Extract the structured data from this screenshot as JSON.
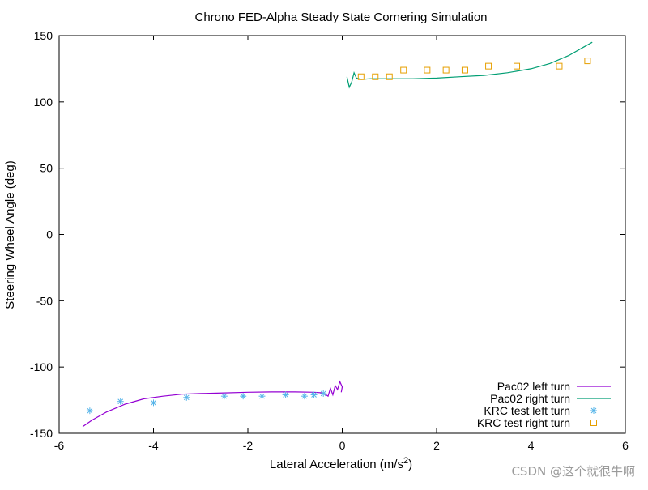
{
  "chart_data": {
    "type": "line",
    "title": "Chrono FED-Alpha Steady State Cornering Simulation",
    "xlabel_main": "Lateral Acceleration (m/s",
    "xlabel_sup": "2",
    "xlabel_tail": ")",
    "ylabel": "Steering Wheel Angle (deg)",
    "xlim": [
      -6,
      6
    ],
    "ylim": [
      -150,
      150
    ],
    "xticks": [
      -6,
      -4,
      -2,
      0,
      2,
      4,
      6
    ],
    "yticks": [
      -150,
      -100,
      -50,
      0,
      50,
      100,
      150
    ],
    "grid": false,
    "legend_position": "bottom-right",
    "series": [
      {
        "name": "Pac02 left turn",
        "kind": "line",
        "color": "#9400d3",
        "points": [
          [
            -5.5,
            -145
          ],
          [
            -5.3,
            -140
          ],
          [
            -5.0,
            -134
          ],
          [
            -4.6,
            -128
          ],
          [
            -4.2,
            -124
          ],
          [
            -3.8,
            -122
          ],
          [
            -3.4,
            -120.5
          ],
          [
            -3.0,
            -120
          ],
          [
            -2.5,
            -119.5
          ],
          [
            -2.0,
            -119
          ],
          [
            -1.5,
            -118.8
          ],
          [
            -1.0,
            -118.8
          ],
          [
            -0.6,
            -119
          ],
          [
            -0.4,
            -119.5
          ],
          [
            -0.3,
            -122
          ],
          [
            -0.25,
            -116
          ],
          [
            -0.2,
            -121
          ],
          [
            -0.15,
            -114
          ],
          [
            -0.1,
            -117
          ],
          [
            -0.05,
            -111
          ],
          [
            0.0,
            -115
          ],
          [
            -0.02,
            -119
          ]
        ]
      },
      {
        "name": "Pac02 right turn",
        "kind": "line",
        "color": "#009e73",
        "points": [
          [
            0.1,
            119
          ],
          [
            0.15,
            111
          ],
          [
            0.2,
            115
          ],
          [
            0.25,
            122
          ],
          [
            0.3,
            118
          ],
          [
            0.4,
            117
          ],
          [
            0.6,
            117.5
          ],
          [
            1.0,
            117.5
          ],
          [
            1.5,
            117.5
          ],
          [
            2.0,
            118
          ],
          [
            2.5,
            119
          ],
          [
            3.0,
            120
          ],
          [
            3.5,
            122
          ],
          [
            4.0,
            125
          ],
          [
            4.4,
            129
          ],
          [
            4.8,
            135
          ],
          [
            5.1,
            141
          ],
          [
            5.3,
            145
          ]
        ]
      },
      {
        "name": "KRC test left turn",
        "kind": "points",
        "marker": "asterisk",
        "color": "#56b4e9",
        "points": [
          [
            -5.35,
            -133
          ],
          [
            -4.7,
            -126
          ],
          [
            -4.0,
            -127
          ],
          [
            -3.3,
            -123
          ],
          [
            -2.5,
            -122
          ],
          [
            -2.1,
            -122
          ],
          [
            -1.7,
            -122
          ],
          [
            -1.2,
            -121
          ],
          [
            -0.8,
            -122
          ],
          [
            -0.6,
            -121
          ],
          [
            -0.4,
            -120
          ]
        ]
      },
      {
        "name": "KRC test right turn",
        "kind": "points",
        "marker": "square",
        "color": "#e69f00",
        "points": [
          [
            0.4,
            119
          ],
          [
            0.7,
            119
          ],
          [
            1.0,
            119
          ],
          [
            1.3,
            124
          ],
          [
            1.8,
            124
          ],
          [
            2.2,
            124
          ],
          [
            2.6,
            124
          ],
          [
            3.1,
            127
          ],
          [
            3.7,
            127
          ],
          [
            4.6,
            127
          ],
          [
            5.2,
            131
          ]
        ]
      }
    ]
  },
  "watermark": "CSDN @这个就很牛啊"
}
